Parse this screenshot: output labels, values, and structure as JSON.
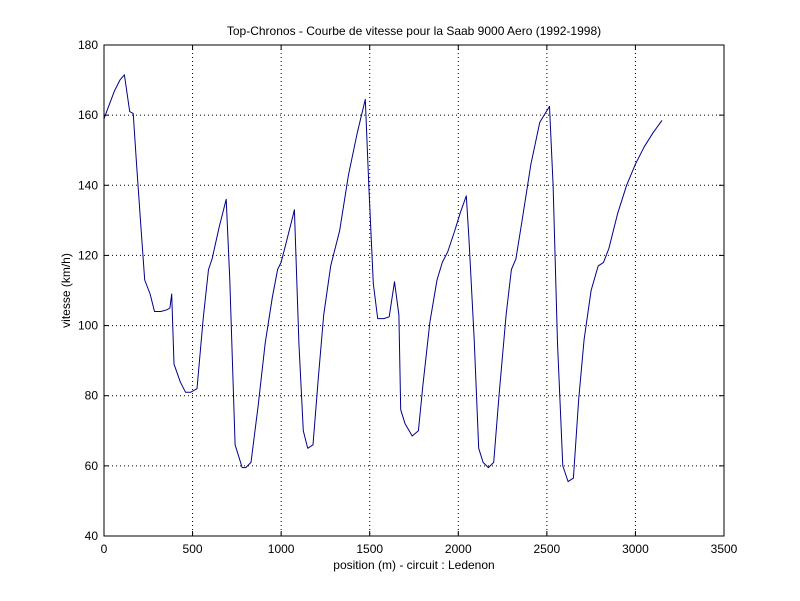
{
  "chart_data": {
    "type": "line",
    "title": "Top-Chronos - Courbe de vitesse pour la Saab 9000 Aero (1992-1998)",
    "xlabel": "position (m) - circuit : Ledenon",
    "ylabel": "vitesse (km/h)",
    "xlim": [
      0,
      3500
    ],
    "ylim": [
      40,
      180
    ],
    "xticks": [
      0,
      500,
      1000,
      1500,
      2000,
      2500,
      3000,
      3500
    ],
    "yticks": [
      40,
      60,
      80,
      100,
      120,
      140,
      160,
      180
    ],
    "grid": true,
    "line_color": "#00008b",
    "series": [
      {
        "x": [
          0,
          30,
          60,
          90,
          115,
          145,
          165,
          185,
          210,
          230,
          260,
          285,
          320,
          355,
          372,
          382,
          395,
          430,
          460,
          490,
          525,
          560,
          590,
          610,
          650,
          690,
          710,
          740,
          780,
          800,
          830,
          870,
          910,
          950,
          980,
          1000,
          1030,
          1060,
          1075,
          1100,
          1125,
          1150,
          1180,
          1210,
          1240,
          1280,
          1330,
          1380,
          1430,
          1475,
          1495,
          1520,
          1545,
          1580,
          1610,
          1640,
          1665,
          1675,
          1700,
          1740,
          1775,
          1800,
          1840,
          1880,
          1910,
          1940,
          1980,
          2010,
          2045,
          2060,
          2090,
          2115,
          2140,
          2170,
          2200,
          2230,
          2270,
          2300,
          2325,
          2360,
          2410,
          2460,
          2515,
          2535,
          2560,
          2590,
          2620,
          2650,
          2680,
          2710,
          2750,
          2790,
          2820,
          2850,
          2900,
          2950,
          3000,
          3050,
          3100,
          3150
        ],
        "y": [
          159,
          163,
          167,
          170,
          171.5,
          161,
          160.5,
          145,
          127,
          113,
          109,
          104,
          104,
          104.5,
          105,
          109,
          89,
          84,
          81,
          81,
          82,
          102,
          116,
          119,
          128,
          136,
          113,
          66,
          59.5,
          59.5,
          61,
          77,
          95,
          108,
          116,
          118,
          124,
          130,
          133,
          95,
          70,
          65,
          66,
          85,
          103,
          117,
          127,
          143,
          155,
          164.5,
          140,
          112,
          102,
          102,
          102.5,
          112.5,
          103,
          76,
          72,
          68.5,
          70,
          83,
          101,
          113,
          118,
          121,
          127,
          132,
          137,
          125,
          96,
          65,
          61,
          59.5,
          61,
          80,
          103,
          116,
          119,
          130,
          146,
          158,
          162.5,
          140,
          95,
          60,
          55.5,
          56.5,
          79,
          96,
          110,
          117,
          118,
          122,
          132,
          140,
          146,
          151,
          155,
          158.5
        ]
      }
    ]
  }
}
